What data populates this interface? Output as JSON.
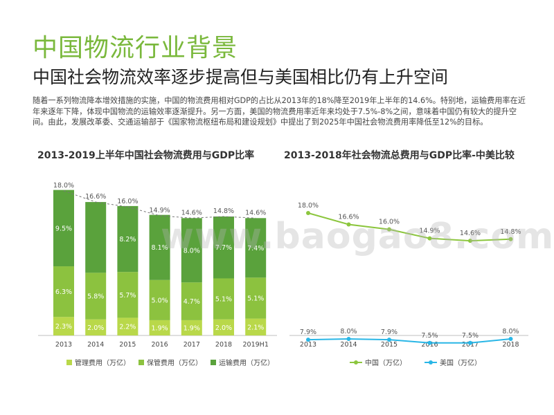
{
  "title": "中国物流行业背景",
  "subtitle": "中国社会物流效率逐步提高但与美国相比仍有上升空间",
  "body_text": "随着一系列物流降本增效措施的实施，中国的物流费用相对GDP的占比从2013年的18%降至2019年上半年的14.6%。特别地，运输费用率在近年来逐年下降，体现中国物流的运输效率逐渐提升。另一方面，美国的物流费用率近年来均处于7.5%-8%之间，意味着中国仍有较大的提升空间。由此，发展改革委、交通运输部于《国家物流枢纽布局和建设规划》中提出了到2025年中国社会物流费用率降低至12%的目标。",
  "watermark": "www.baogao8.com",
  "colors": {
    "title": "#7ab83c",
    "mgmt": "#b9d84a",
    "storage": "#8cc23f",
    "transport": "#5aa23c",
    "china": "#8cc63e",
    "usa": "#29b6e6"
  },
  "chart1": {
    "title": "2013-2019上半年中国社会物流费用与GDP比率",
    "legend": {
      "mgmt": "管理费用（万亿）",
      "storage": "保管费用（万亿）",
      "transport": "运输费用（万亿）"
    }
  },
  "chart2": {
    "title": "2013-2018年社会物流总费用与GDP比率-中美比较",
    "legend": {
      "china": "中国（万亿）",
      "usa": "美国（万亿）"
    }
  },
  "chart_data": [
    {
      "type": "bar",
      "stacked": true,
      "title": "2013-2019上半年中国社会物流费用与GDP比率",
      "categories": [
        "2013",
        "2014",
        "2015",
        "2016",
        "2017",
        "2018",
        "2019H1"
      ],
      "series": [
        {
          "name": "管理费用（万亿）",
          "values": [
            2.3,
            2.0,
            2.2,
            1.9,
            1.9,
            2.0,
            2.1
          ],
          "labels": [
            "2.3%",
            "2.0%",
            "2.2%",
            "1.9%",
            "1.9%",
            "2.0%",
            "2.1%"
          ]
        },
        {
          "name": "保管费用（万亿）",
          "values": [
            6.3,
            5.8,
            5.7,
            5.0,
            4.7,
            5.1,
            5.1
          ],
          "labels": [
            "6.3%",
            "5.8%",
            "5.7%",
            "5.0%",
            "4.7%",
            "5.1%",
            "5.1%"
          ]
        },
        {
          "name": "运输费用（万亿）",
          "values": [
            9.5,
            8.8,
            8.2,
            8.1,
            8.0,
            7.7,
            7.4
          ],
          "labels": [
            "9.5%",
            "",
            "8.2%",
            "8.1%",
            "8.0%",
            "7.7%",
            "7.4%"
          ]
        }
      ],
      "totals": [
        18.0,
        16.6,
        16.0,
        14.9,
        14.6,
        14.8,
        14.6
      ],
      "total_labels": [
        "18.0%",
        "16.6%",
        "16.0%",
        "14.9%",
        "14.6%",
        "14.8%",
        "14.6%"
      ],
      "ylim": [
        0,
        18.5
      ],
      "trend_line": "dashed"
    },
    {
      "type": "line",
      "title": "2013-2018年社会物流总费用与GDP比率-中美比较",
      "categories": [
        "2013",
        "2014",
        "2015",
        "2016",
        "2017",
        "2018"
      ],
      "series": [
        {
          "name": "中国（万亿）",
          "values": [
            18.0,
            16.6,
            16.0,
            14.9,
            14.6,
            14.8
          ],
          "labels": [
            "18.0%",
            "16.6%",
            "16.0%",
            "14.9%",
            "14.6%",
            "14.8%"
          ]
        },
        {
          "name": "美国（万亿）",
          "values": [
            7.9,
            8.0,
            7.9,
            7.5,
            7.5,
            8.0
          ],
          "labels": [
            "7.9%",
            "8.0%",
            "7.9%",
            "7.5%",
            "7.5%",
            "8.0%"
          ]
        }
      ],
      "ylim": [
        0,
        20
      ]
    }
  ]
}
